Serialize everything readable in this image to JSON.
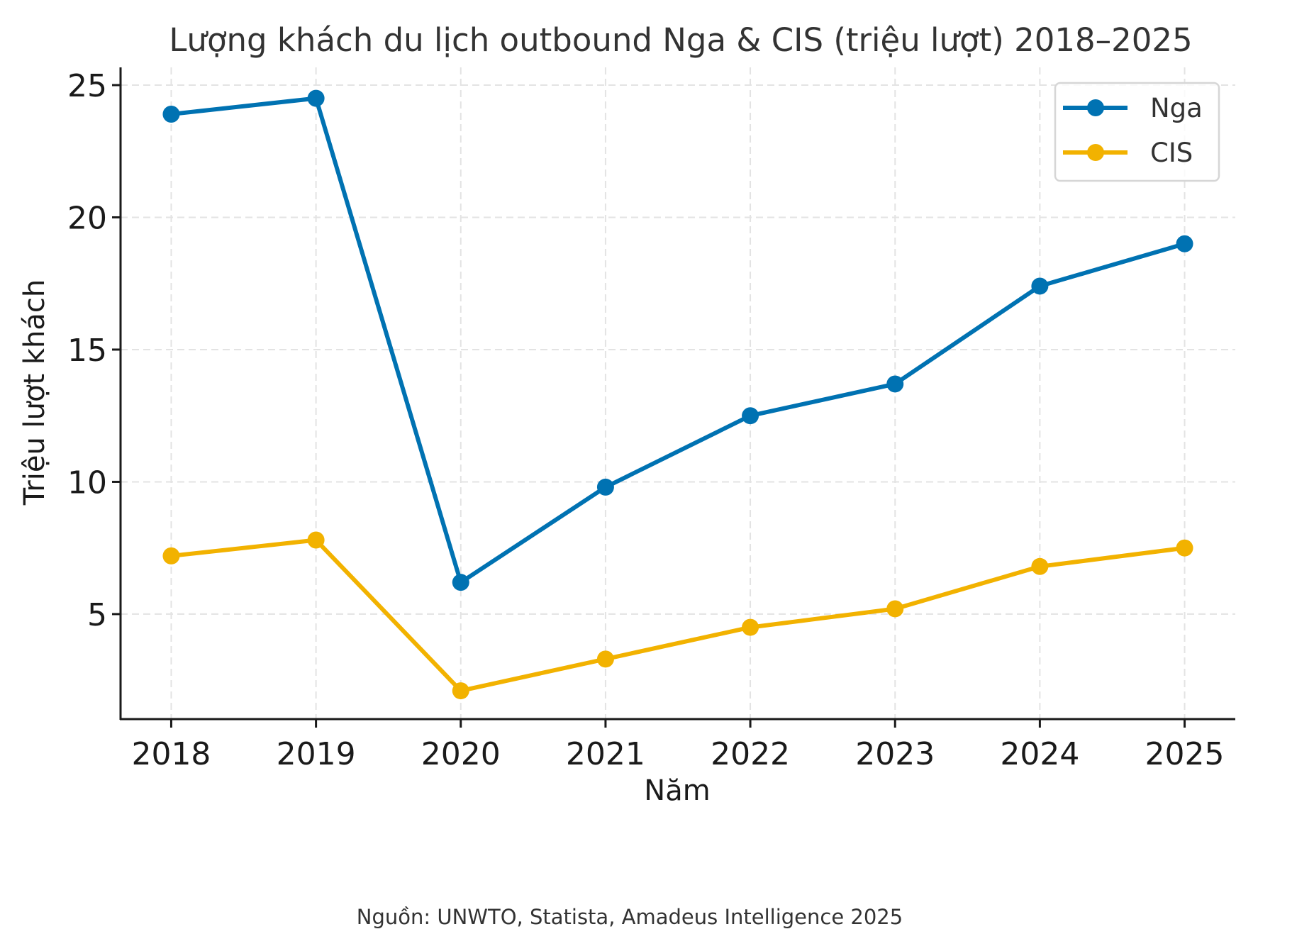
{
  "chart_data": {
    "type": "line",
    "title": "Lượng khách du lịch outbound Nga & CIS (triệu lượt) 2018–2025",
    "xlabel": "Năm",
    "ylabel": "Triệu lượt khách",
    "x": [
      2018,
      2019,
      2020,
      2021,
      2022,
      2023,
      2024,
      2025
    ],
    "x_tick_labels": [
      "2018",
      "2019",
      "2020",
      "2021",
      "2022",
      "2023",
      "2024",
      "2025"
    ],
    "y_ticks": [
      5,
      10,
      15,
      20,
      25
    ],
    "y_tick_labels": [
      "5",
      "10",
      "15",
      "20",
      "25"
    ],
    "xlim": [
      2017.65,
      2025.35
    ],
    "ylim": [
      1.03,
      25.67
    ],
    "grid": true,
    "legend_position": "top-right",
    "series": [
      {
        "name": "Nga",
        "color": "#0072b2",
        "values": [
          23.9,
          24.5,
          6.2,
          9.8,
          12.5,
          13.7,
          17.4,
          19.0
        ]
      },
      {
        "name": "CIS",
        "color": "#f2b200",
        "values": [
          7.2,
          7.8,
          2.1,
          3.3,
          4.5,
          5.2,
          6.8,
          7.5
        ]
      }
    ],
    "source_note": "Nguồn: UNWTO, Statista, Amadeus Intelligence 2025"
  }
}
